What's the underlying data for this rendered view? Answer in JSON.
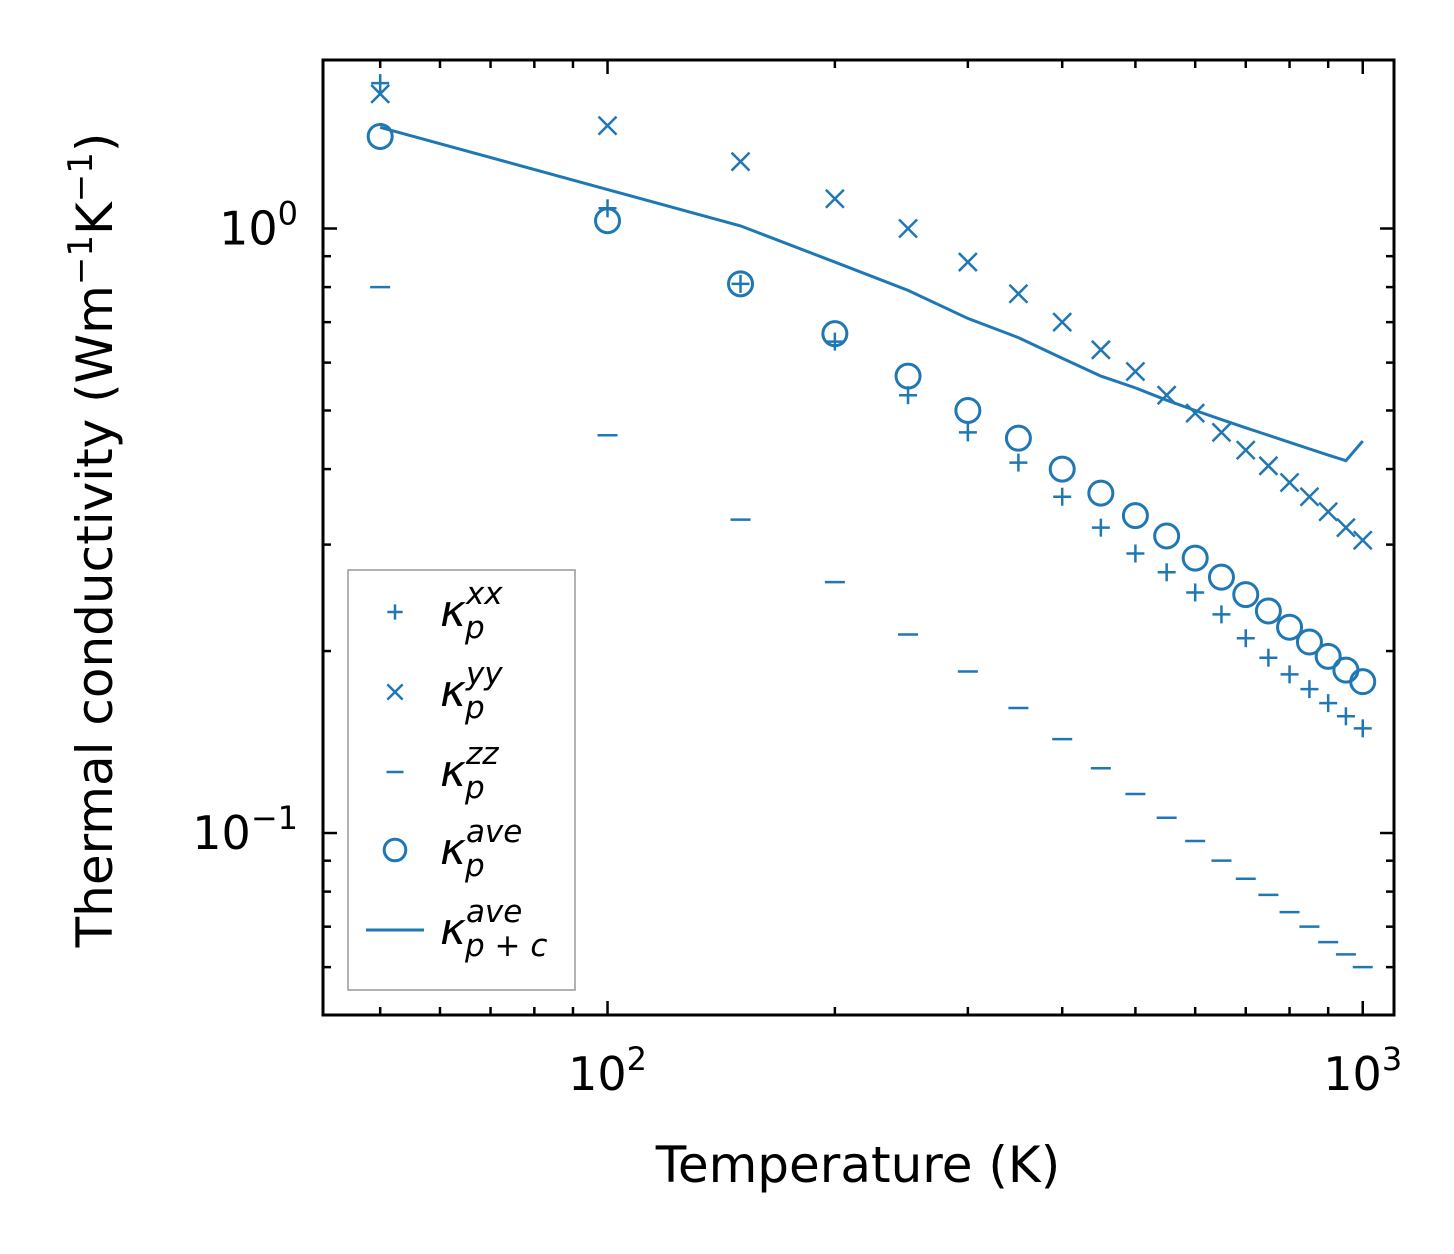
{
  "chart_data": {
    "type": "scatter",
    "xscale": "log",
    "yscale": "log",
    "xlabel": "Temperature (K)",
    "ylabel_main": "Thermal conductivity (Wm",
    "ylabel_exp1": "−1",
    "ylabel_mid": "K",
    "ylabel_exp2": "−1",
    "ylabel_end": ")",
    "xlim": [
      42,
      1100
    ],
    "ylim": [
      0.05,
      1.9
    ],
    "x_ticks": [
      {
        "value": 100,
        "base": "10",
        "exp": "2"
      },
      {
        "value": 1000,
        "base": "10",
        "exp": "3"
      }
    ],
    "y_ticks": [
      {
        "value": 1.0,
        "base": "10",
        "exp": "0"
      },
      {
        "value": 0.1,
        "base": "10",
        "exp": "−1"
      }
    ],
    "x": [
      50,
      100,
      150,
      200,
      250,
      300,
      350,
      400,
      450,
      500,
      550,
      600,
      650,
      700,
      750,
      800,
      850,
      900,
      950,
      1000
    ],
    "series": [
      {
        "name": "kxx",
        "marker": "plus",
        "label": "κ",
        "sub": "p",
        "sup": "xx",
        "values": [
          1.74,
          1.08,
          0.81,
          0.65,
          0.53,
          0.46,
          0.41,
          0.36,
          0.32,
          0.29,
          0.27,
          0.25,
          0.23,
          0.21,
          0.195,
          0.183,
          0.173,
          0.164,
          0.156,
          0.149
        ]
      },
      {
        "name": "kyy",
        "marker": "x",
        "label": "κ",
        "sub": "p",
        "sup": "yy",
        "values": [
          1.67,
          1.48,
          1.29,
          1.12,
          1.0,
          0.88,
          0.78,
          0.7,
          0.63,
          0.58,
          0.53,
          0.495,
          0.46,
          0.43,
          0.405,
          0.38,
          0.36,
          0.34,
          0.32,
          0.305
        ]
      },
      {
        "name": "kzz",
        "marker": "dash",
        "label": "κ",
        "sub": "p",
        "sup": "zz",
        "values": [
          0.8,
          0.455,
          0.33,
          0.26,
          0.213,
          0.185,
          0.161,
          0.143,
          0.128,
          0.116,
          0.106,
          0.097,
          0.09,
          0.084,
          0.079,
          0.074,
          0.07,
          0.066,
          0.063,
          0.06
        ]
      },
      {
        "name": "kave",
        "marker": "circle",
        "label": "κ",
        "sub": "p",
        "sup": "ave",
        "values": [
          1.42,
          1.03,
          0.81,
          0.67,
          0.57,
          0.5,
          0.45,
          0.4,
          0.365,
          0.335,
          0.31,
          0.285,
          0.265,
          0.248,
          0.233,
          0.219,
          0.207,
          0.196,
          0.186,
          0.178
        ]
      },
      {
        "name": "kave_pc",
        "marker": "line",
        "label": "κ",
        "sub": "p + c",
        "sup": "ave",
        "values": [
          1.47,
          1.16,
          1.01,
          0.88,
          0.79,
          0.71,
          0.66,
          0.61,
          0.57,
          0.545,
          0.52,
          0.5,
          0.483,
          0.468,
          0.455,
          0.443,
          0.432,
          0.422,
          0.413,
          0.445
        ]
      }
    ],
    "legend_position": "lower-left",
    "color": "#1f77b4"
  }
}
